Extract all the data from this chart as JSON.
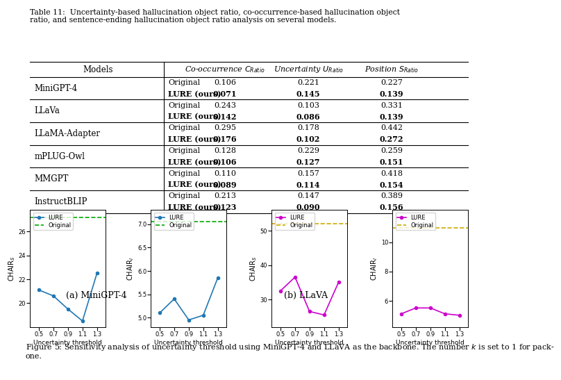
{
  "table_caption": "Table 11:  Uncertainty-based hallucination object ratio, co-occurrence-based hallucination object\nratio, and sentence-ending hallucination object ratio analysis on several models.",
  "rows": [
    {
      "model": "MiniGPT-4",
      "type1": "Original",
      "type2": "LURE (ours)",
      "c1": "0.106",
      "c2": "0.071",
      "u1": "0.221",
      "u2": "0.145",
      "p1": "0.227",
      "p2": "0.139"
    },
    {
      "model": "LLaVa",
      "type1": "Original",
      "type2": "LURE (ours)",
      "c1": "0.243",
      "c2": "0.142",
      "u1": "0.103",
      "u2": "0.086",
      "p1": "0.331",
      "p2": "0.139"
    },
    {
      "model": "LLaMA-Adapter",
      "type1": "Original",
      "type2": "LURE (ours)",
      "c1": "0.295",
      "c2": "0.176",
      "u1": "0.178",
      "u2": "0.102",
      "p1": "0.442",
      "p2": "0.272"
    },
    {
      "model": "mPLUG-Owl",
      "type1": "Original",
      "type2": "LURE (ours)",
      "c1": "0.128",
      "c2": "0.106",
      "u1": "0.229",
      "u2": "0.127",
      "p1": "0.259",
      "p2": "0.151"
    },
    {
      "model": "MMGPT",
      "type1": "Original",
      "type2": "LURE (ours)",
      "c1": "0.110",
      "c2": "0.089",
      "u1": "0.157",
      "u2": "0.114",
      "p1": "0.418",
      "p2": "0.154"
    },
    {
      "model": "InstructBLIP",
      "type1": "Original",
      "type2": "LURE (ours)",
      "c1": "0.213",
      "c2": "0.123",
      "u1": "0.147",
      "u2": "0.090",
      "p1": "0.389",
      "p2": "0.156"
    }
  ],
  "x_vals": [
    0.5,
    0.7,
    0.9,
    1.1,
    1.3
  ],
  "minigpt4_chairs_lure": [
    21.1,
    20.6,
    19.5,
    18.5,
    22.5
  ],
  "minigpt4_chairs_original": 27.2,
  "minigpt4_chairi_lure": [
    5.1,
    5.4,
    4.95,
    5.05,
    5.85
  ],
  "minigpt4_chairi_original": 7.05,
  "llava_chairs_lure": [
    32.5,
    36.5,
    26.5,
    25.5,
    35.0
  ],
  "llava_chairs_original": 52.0,
  "llava_chairi_lure": [
    5.1,
    5.5,
    5.5,
    5.1,
    5.0
  ],
  "llava_chairi_original": 11.0,
  "lure_color_blue": "#1f77b4",
  "lure_color_magenta": "#cc00cc",
  "original_color_green": "#00aa00",
  "original_color_yellow": "#ccaa00",
  "subfig_a_label": "(a) MiniGPT-4",
  "subfig_b_label": "(b) LLaVA",
  "fig5_caption": "Figure 5: Sensitivity analysis of uncertainty threshold using MiniGPT-4 and LLaVA as the backbone. The number $k$ is set to 1 for pack-\none."
}
